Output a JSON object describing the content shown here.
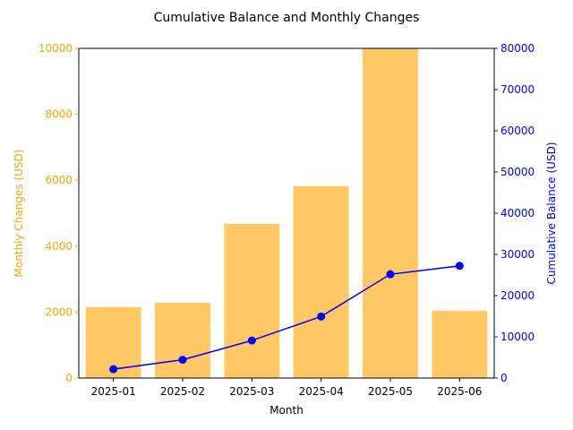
{
  "chart_data": {
    "type": "bar",
    "title": "Cumulative Balance and Monthly Changes",
    "xlabel": "Month",
    "categories": [
      "2025-01",
      "2025-02",
      "2025-03",
      "2025-04",
      "2025-05",
      "2025-06"
    ],
    "series": [
      {
        "type": "bar",
        "axis": "left",
        "values": [
          2150,
          2280,
          4680,
          5820,
          10250,
          2040
        ]
      },
      {
        "type": "line",
        "axis": "right",
        "values": [
          2150,
          4430,
          9110,
          14930,
          25180,
          27220
        ]
      }
    ],
    "ylabel": "Monthly Changes (USD)",
    "ylim": [
      0,
      10000
    ],
    "yticks": [
      "0",
      "2000",
      "4000",
      "6000",
      "8000",
      "10000"
    ],
    "ylabel_right": "Cumulative Balance (USD)",
    "ylim_right": [
      0,
      80000
    ],
    "yticks_right": [
      "0",
      "10000",
      "20000",
      "30000",
      "40000",
      "50000",
      "60000",
      "70000",
      "80000"
    ],
    "colors": {
      "bar": "#ffc864",
      "left_axis": "#ffa500",
      "line": "#0000ff"
    },
    "grid": false
  }
}
